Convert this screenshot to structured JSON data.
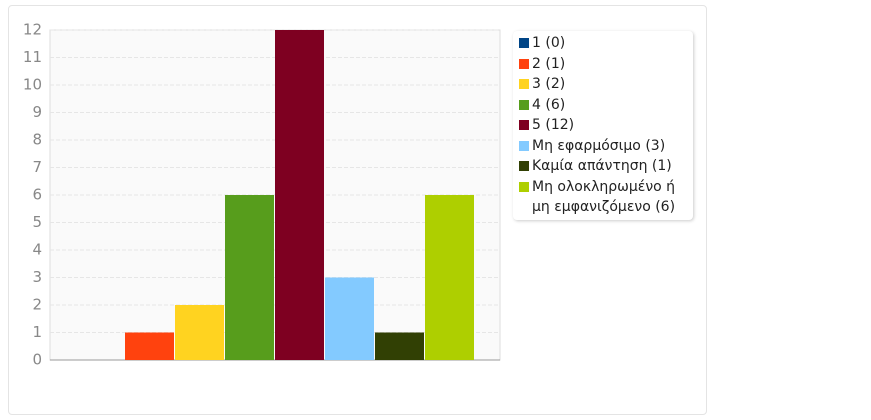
{
  "chart_data": {
    "type": "bar",
    "categories": [
      null
    ],
    "series": [
      {
        "name": "1 (0)",
        "color": "#004586",
        "values": [
          0
        ]
      },
      {
        "name": "2 (1)",
        "color": "#ff420e",
        "values": [
          1
        ]
      },
      {
        "name": "3 (2)",
        "color": "#ffd320",
        "values": [
          2
        ]
      },
      {
        "name": "4 (6)",
        "color": "#579d1c",
        "values": [
          6
        ]
      },
      {
        "name": "5 (12)",
        "color": "#7e0021",
        "values": [
          12
        ]
      },
      {
        "name": "Μη εφαρμόσιμο (3)",
        "color": "#83caff",
        "values": [
          3
        ]
      },
      {
        "name": "Καμία απάντηση (1)",
        "color": "#314004",
        "values": [
          1
        ]
      },
      {
        "name": "Μη ολοκληρωμένο ή μη εμφανιζόμενο (6)",
        "color": "#aecf00",
        "values": [
          6
        ]
      }
    ],
    "ylim": [
      0,
      12
    ],
    "yticks": [
      0,
      1,
      2,
      3,
      4,
      5,
      6,
      7,
      8,
      9,
      10,
      11,
      12
    ],
    "grid": true,
    "legend": "right"
  }
}
